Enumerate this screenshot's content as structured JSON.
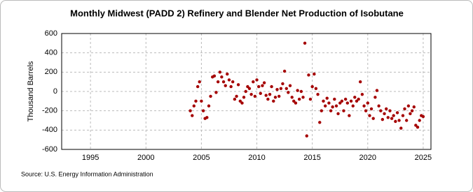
{
  "chart_data": {
    "type": "scatter",
    "title": "Monthly Midwest (PADD 2) Refinery and Blender Net Production of Isobutane",
    "y_label": "Thousand Barrels",
    "source": "Source: U.S. Energy Information Administration",
    "color": "#a50000",
    "grid": true,
    "xlim": [
      1992.4,
      2025.7
    ],
    "xticks": [
      1995,
      2000,
      2005,
      2010,
      2015,
      2020,
      2025
    ],
    "ylim": [
      -600,
      600
    ],
    "yticks": [
      600,
      400,
      200,
      0,
      -200,
      -400,
      -600
    ],
    "x": [
      2004.0,
      2004.17,
      2004.33,
      2004.5,
      2004.67,
      2004.83,
      2005.0,
      2005.17,
      2005.33,
      2005.5,
      2005.67,
      2005.83,
      2006.0,
      2006.17,
      2006.33,
      2006.5,
      2006.67,
      2006.83,
      2007.0,
      2007.17,
      2007.33,
      2007.5,
      2007.67,
      2007.83,
      2008.0,
      2008.17,
      2008.33,
      2008.5,
      2008.67,
      2008.83,
      2009.0,
      2009.17,
      2009.33,
      2009.5,
      2009.67,
      2009.83,
      2010.0,
      2010.17,
      2010.33,
      2010.5,
      2010.67,
      2010.83,
      2011.0,
      2011.17,
      2011.33,
      2011.5,
      2011.67,
      2011.83,
      2012.0,
      2012.17,
      2012.33,
      2012.5,
      2012.67,
      2012.83,
      2013.0,
      2013.17,
      2013.33,
      2013.5,
      2013.67,
      2013.83,
      2014.0,
      2014.17,
      2014.33,
      2014.5,
      2014.67,
      2014.83,
      2015.0,
      2015.17,
      2015.33,
      2015.5,
      2015.67,
      2015.83,
      2016.0,
      2016.17,
      2016.33,
      2016.5,
      2016.67,
      2016.83,
      2017.0,
      2017.17,
      2017.33,
      2017.5,
      2017.67,
      2017.83,
      2018.0,
      2018.17,
      2018.33,
      2018.5,
      2018.67,
      2018.83,
      2019.0,
      2019.17,
      2019.33,
      2019.5,
      2019.67,
      2019.83,
      2020.0,
      2020.17,
      2020.33,
      2020.5,
      2020.67,
      2020.83,
      2021.0,
      2021.17,
      2021.33,
      2021.5,
      2021.67,
      2021.83,
      2022.0,
      2022.17,
      2022.33,
      2022.5,
      2022.67,
      2022.83,
      2023.0,
      2023.17,
      2023.33,
      2023.5,
      2023.67,
      2023.83,
      2024.0,
      2024.17,
      2024.33,
      2024.5,
      2024.67,
      2024.83,
      2025.0
    ],
    "values": [
      -200,
      -250,
      -150,
      -100,
      50,
      100,
      -100,
      -200,
      -280,
      -270,
      -150,
      -50,
      150,
      160,
      -10,
      100,
      200,
      150,
      100,
      60,
      180,
      120,
      50,
      100,
      -80,
      -50,
      70,
      -100,
      -120,
      -60,
      0,
      50,
      30,
      -30,
      100,
      -50,
      120,
      50,
      -20,
      60,
      90,
      -40,
      -80,
      -30,
      50,
      -100,
      -60,
      20,
      -50,
      30,
      80,
      210,
      30,
      -10,
      60,
      -60,
      -100,
      -120,
      10,
      -80,
      0,
      -60,
      500,
      -460,
      170,
      -80,
      50,
      180,
      30,
      -30,
      -320,
      -200,
      -100,
      -150,
      -70,
      -120,
      -200,
      -160,
      -80,
      -150,
      -230,
      -120,
      -100,
      -200,
      -80,
      -120,
      -250,
      -100,
      -150,
      -60,
      -100,
      -80,
      100,
      -30,
      -150,
      -200,
      -120,
      -250,
      -180,
      -280,
      -60,
      10,
      -150,
      -200,
      -290,
      -230,
      -180,
      -270,
      -200,
      -280,
      -250,
      -310,
      -220,
      -300,
      -380,
      -250,
      -180,
      -300,
      -150,
      -230,
      -200,
      -160,
      -350,
      -370,
      -300,
      -250,
      -260
    ]
  }
}
